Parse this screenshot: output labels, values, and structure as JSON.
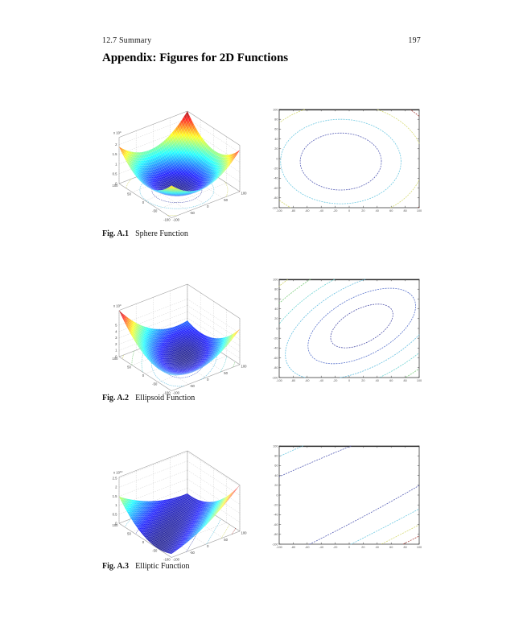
{
  "page": {
    "header_left": "12.7  Summary",
    "page_number": "197",
    "title": "Appendix: Figures for 2D Functions"
  },
  "axes_2d": {
    "ticks": [
      -100,
      -80,
      -60,
      -40,
      -20,
      0,
      20,
      40,
      60,
      80,
      100
    ]
  },
  "axes_3d": {
    "ticks": [
      -100,
      -50,
      0,
      50,
      100
    ]
  },
  "chart_data": [
    {
      "caption_label": "Fig. A.1",
      "caption_text": "Sphere Function",
      "function": "sphere",
      "type": "surface+contour",
      "xy_range": [
        -100,
        100
      ],
      "model": {
        "center": [
          -12,
          -6
        ],
        "angle_deg": 0,
        "axes": [
          1,
          1
        ]
      },
      "surface": {
        "fmax": 23780,
        "exp_base": "x 10",
        "exp_sup": "4",
        "z_ticks": [
          {
            "v": 0,
            "label": "0"
          },
          {
            "v": 5000,
            "label": "0.5"
          },
          {
            "v": 10000,
            "label": "1"
          },
          {
            "v": 15000,
            "label": "1.5"
          },
          {
            "v": 20000,
            "label": "2"
          }
        ]
      },
      "contour": {
        "levels": [
          {
            "s": 58,
            "color": "#4a52b0"
          },
          {
            "s": 86,
            "color": "#62c4e0"
          },
          {
            "s": 118,
            "color": "#d2d868"
          },
          {
            "s": 145,
            "color": "#a63832"
          }
        ]
      }
    },
    {
      "caption_label": "Fig. A.2",
      "caption_text": "Ellipsoid Function",
      "function": "ellipsoid",
      "type": "surface+contour",
      "xy_range": [
        -100,
        100
      ],
      "model": {
        "center": [
          18,
          5
        ],
        "angle_deg": 45,
        "axes": [
          1,
          0.5556
        ]
      },
      "surface": {
        "fmax": 73750,
        "exp_base": "x 10",
        "exp_sup": "4",
        "z_ticks": [
          {
            "v": 0,
            "label": "0"
          },
          {
            "v": 10000,
            "label": "1"
          },
          {
            "v": 20000,
            "label": "2"
          },
          {
            "v": 30000,
            "label": "3"
          },
          {
            "v": 40000,
            "label": "4"
          },
          {
            "v": 50000,
            "label": "5"
          }
        ]
      },
      "contour": {
        "levels": [
          {
            "s": 55,
            "color": "#464aa6"
          },
          {
            "s": 95,
            "color": "#4a66c8"
          },
          {
            "s": 135,
            "color": "#58bade"
          },
          {
            "s": 175,
            "color": "#5ecfcf"
          },
          {
            "s": 215,
            "color": "#74ca74"
          },
          {
            "s": 255,
            "color": "#c9cf58"
          },
          {
            "s": 295,
            "color": "#b2403a"
          }
        ]
      }
    },
    {
      "caption_label": "Fig. A.3",
      "caption_text": "Elliptic Function",
      "function": "elliptic",
      "type": "surface+contour",
      "xy_range": [
        -100,
        100
      ],
      "model": {
        "center": [
          -140,
          -73
        ],
        "angle_deg": 34.4,
        "axes": [
          6.7,
          1
        ]
      },
      "surface": {
        "fmax": 25675,
        "exp_base": "x 10",
        "exp_sup": "10",
        "z_ticks": [
          {
            "v": 0,
            "label": "0"
          },
          {
            "v": 5000,
            "label": "0.5"
          },
          {
            "v": 10000,
            "label": "1"
          },
          {
            "v": 15000,
            "label": "1.5"
          },
          {
            "v": 20000,
            "label": "2"
          },
          {
            "v": 25000,
            "label": "2.5"
          }
        ]
      },
      "contour": {
        "levels": [
          {
            "s": 70,
            "color": "#4a52b0"
          },
          {
            "s": 104,
            "color": "#62c4e0"
          },
          {
            "s": 129,
            "color": "#d2d868"
          },
          {
            "s": 147,
            "color": "#a63832"
          }
        ]
      }
    }
  ]
}
